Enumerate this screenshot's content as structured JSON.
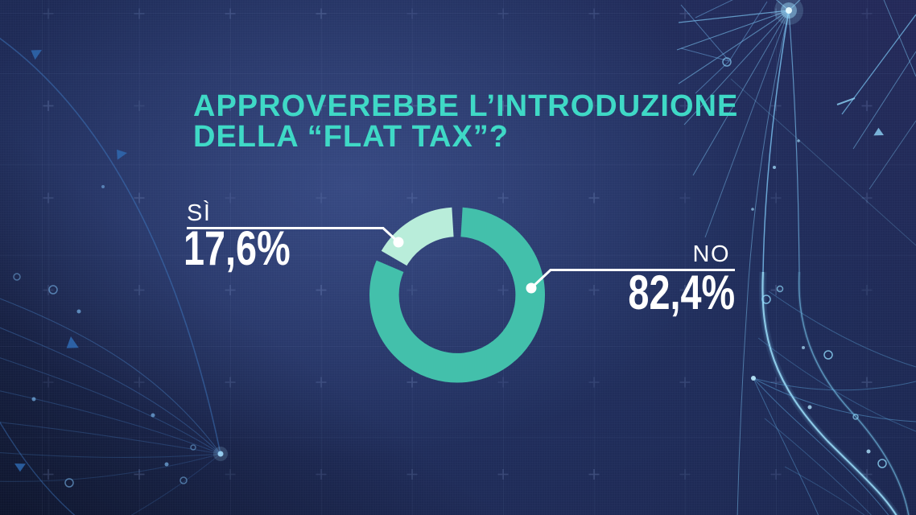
{
  "title": {
    "line1": "APPROVEREBBE L’INTRODUZIONE",
    "line2": "DELLA “FLAT TAX”?"
  },
  "chart_data": {
    "type": "pie",
    "donut": true,
    "title": "APPROVEREBBE L’INTRODUZIONE DELLA “FLAT TAX”?",
    "categories": [
      "SÌ",
      "NO"
    ],
    "values": [
      17.6,
      82.4
    ],
    "display_values": [
      "17,6%",
      "82,4%"
    ],
    "colors": [
      "#b9edda",
      "#43c0ab"
    ],
    "layout": {
      "start_angle_deg": 0,
      "clockwise": true,
      "draw_order": [
        1,
        0
      ],
      "gap_deg": 7,
      "legend": "callouts",
      "callout_sides": [
        "left",
        "right"
      ]
    }
  },
  "colors": {
    "background": "#1b2751",
    "title_accent": "#3fd9c6",
    "label_text": "#ffffff",
    "callout_line": "#ffffff",
    "network_blue": "#5d9fe0",
    "network_cyan": "#7fd2f8"
  }
}
